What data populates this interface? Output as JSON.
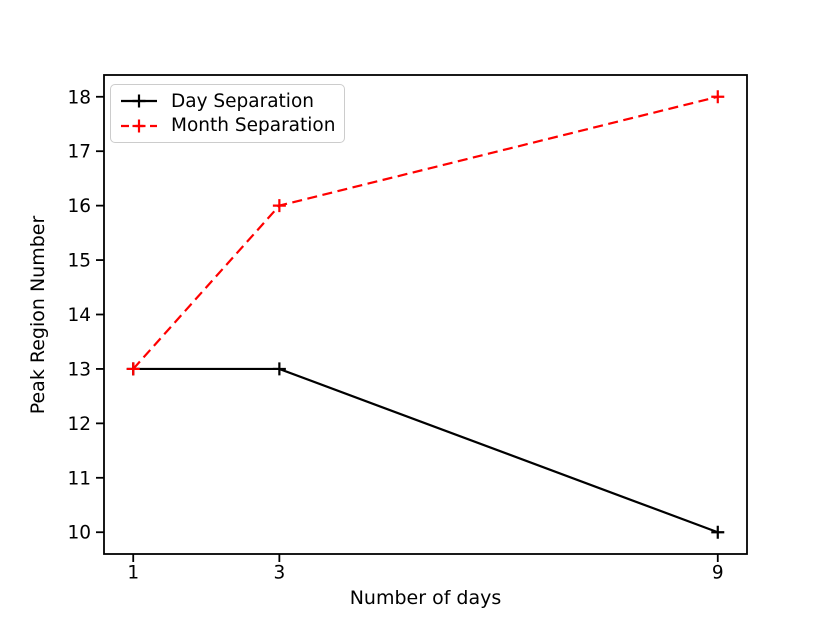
{
  "chart_data": {
    "type": "line",
    "title": "",
    "xlabel": "Number of days",
    "ylabel": "Peak Region Number",
    "xticks": [
      "1",
      "3",
      "9"
    ],
    "yticks": [
      "10",
      "11",
      "12",
      "13",
      "14",
      "15",
      "16",
      "17",
      "18"
    ],
    "xlim": [
      0.6,
      9.4
    ],
    "ylim": [
      9.6,
      18.4
    ],
    "grid": false,
    "legend_position": "upper-left",
    "series": [
      {
        "name": "Day Separation",
        "x": [
          1,
          3,
          9
        ],
        "values": [
          13,
          13,
          10
        ],
        "color": "#000000",
        "linestyle": "solid",
        "marker": "plus"
      },
      {
        "name": "Month Separation",
        "x": [
          1,
          3,
          9
        ],
        "values": [
          13,
          16,
          18
        ],
        "color": "#ff0000",
        "linestyle": "dashed",
        "marker": "plus"
      }
    ]
  },
  "colors": {
    "background": "#ffffff",
    "axes": "#000000",
    "legend_border": "#cccccc",
    "legend_background": "#ffffff"
  }
}
